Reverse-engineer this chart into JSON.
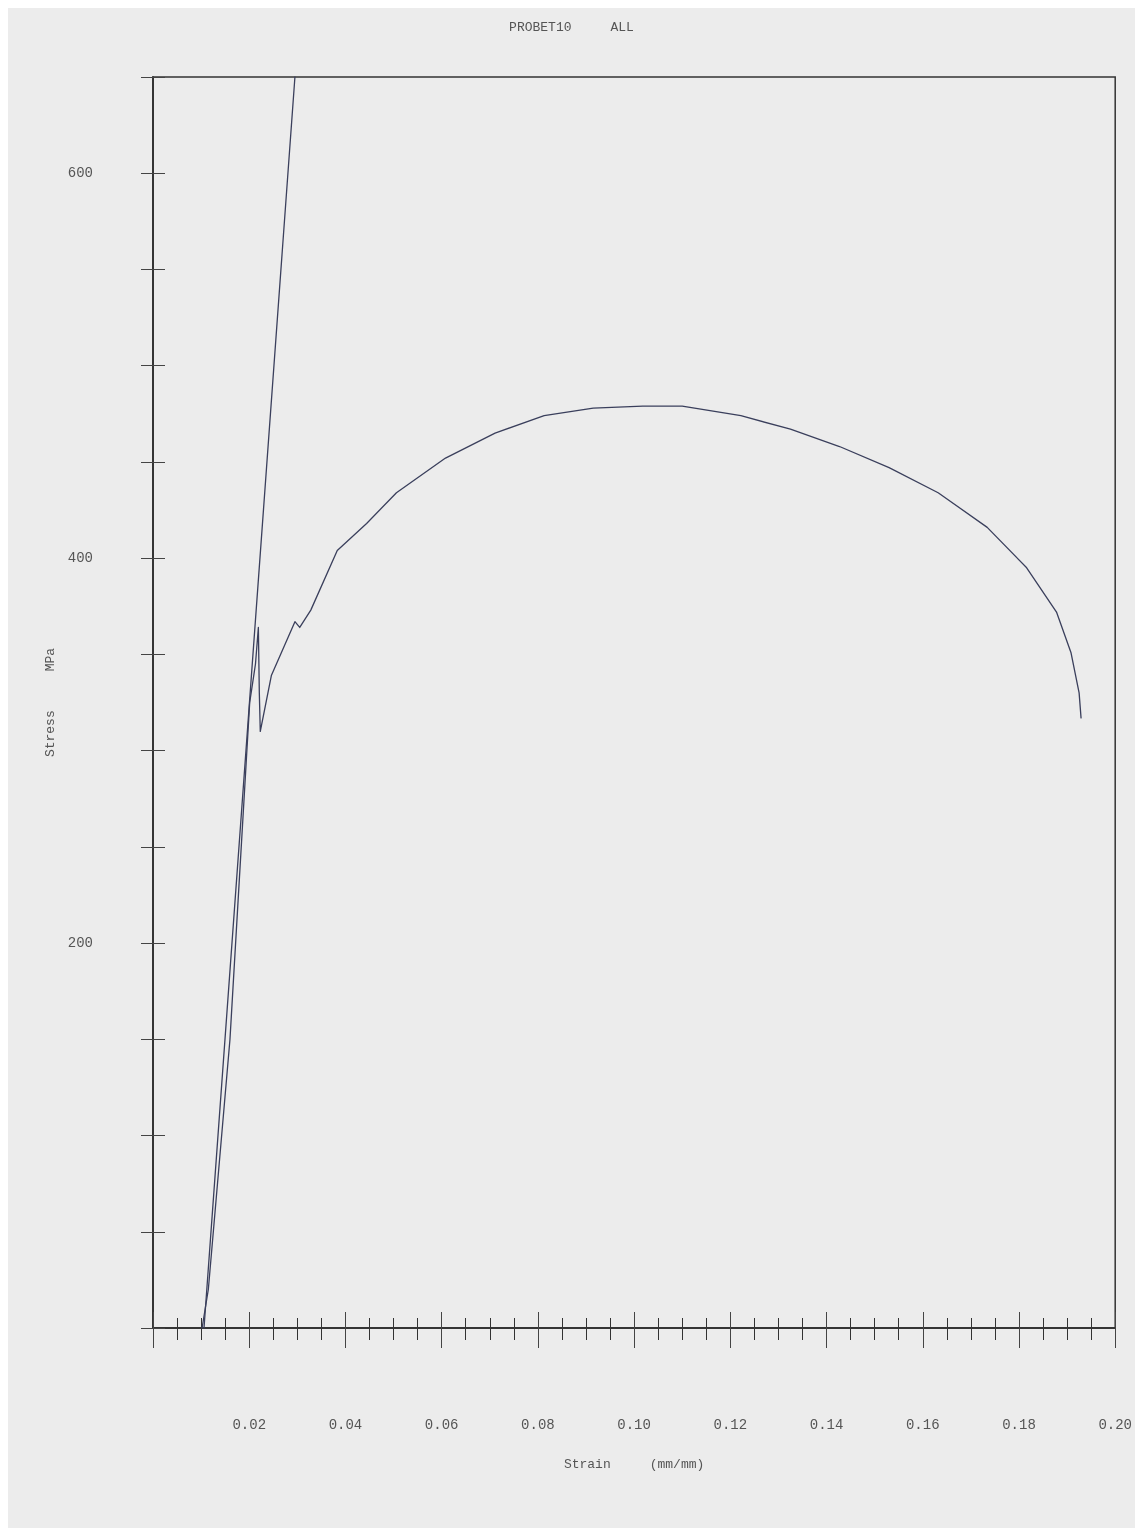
{
  "chart_data": {
    "type": "line",
    "title": "PROBET10     ALL",
    "xlabel": "Strain     (mm/mm)",
    "ylabel": "Stress     MPa",
    "xlim": [
      0,
      0.2
    ],
    "xticks": [
      {
        "value": 0,
        "label": null
      },
      0.02,
      0.04,
      0.06,
      0.08,
      {
        "value": 0.1,
        "label": "0.10"
      },
      0.12,
      0.14,
      0.16,
      0.18,
      {
        "value": 0.2,
        "label": "0.20"
      }
    ],
    "ylim": [
      0,
      650
    ],
    "yticks": [
      {
        "value": 0,
        "label": null
      },
      {
        "value": 50,
        "label": null
      },
      {
        "value": 100,
        "label": null
      },
      {
        "value": 150,
        "label": null
      },
      200,
      {
        "value": 250,
        "label": null
      },
      {
        "value": 300,
        "label": null
      },
      {
        "value": 350,
        "label": null
      },
      400,
      {
        "value": 450,
        "label": null
      },
      {
        "value": 500,
        "label": null
      },
      {
        "value": 550,
        "label": null
      },
      600,
      {
        "value": 650,
        "label": null
      }
    ],
    "grid": false,
    "marker": "none",
    "line_style": "solid",
    "series": [
      {
        "color": "#3a3f5c",
        "x": [
          0.0102,
          0.0115,
          0.016,
          0.0201,
          0.0213,
          0.0219,
          0.0221,
          0.0223,
          0.0246,
          0.0295,
          0.0305,
          0.0328,
          0.0383,
          0.0444,
          0.0506,
          0.0608,
          0.0711,
          0.0813,
          0.0915,
          0.1018,
          0.11,
          0.1222,
          0.1325,
          0.1427,
          0.153,
          0.1632,
          0.1734,
          0.1816,
          0.1878,
          0.1908,
          0.1925,
          0.1929
        ],
        "values": [
          0,
          20,
          150,
          325,
          345,
          364,
          330,
          310,
          339,
          367,
          364,
          373,
          404,
          418,
          434,
          452,
          465,
          474,
          478,
          479,
          479,
          474,
          467,
          458,
          447,
          434,
          416,
          395,
          372,
          351,
          330,
          317
        ]
      },
      {
        "color": "#3a3f5c",
        "x": [
          0.0106,
          0.0295
        ],
        "values": [
          0,
          650
        ]
      }
    ]
  }
}
